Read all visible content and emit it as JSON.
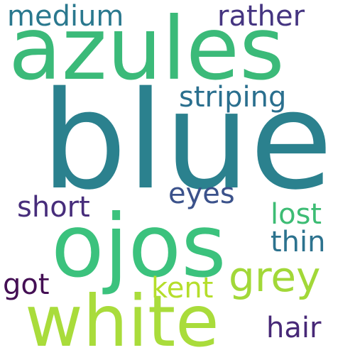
{
  "words": {
    "blue": {
      "text": "blue",
      "color": "#2b818e"
    },
    "azules": {
      "text": "azules",
      "color": "#3bba79"
    },
    "white": {
      "text": "white",
      "color": "#a9dc3b"
    },
    "ojos": {
      "text": "ojos",
      "color": "#3bc27d"
    },
    "grey": {
      "text": "grey",
      "color": "#a2d838"
    },
    "striping": {
      "text": "striping",
      "color": "#2a6f8e"
    },
    "medium": {
      "text": "medium",
      "color": "#2a788e"
    },
    "rather": {
      "text": "rather",
      "color": "#453581"
    },
    "eyes": {
      "text": "eyes",
      "color": "#3b528b"
    },
    "short": {
      "text": "short",
      "color": "#472d7b"
    },
    "lost": {
      "text": "lost",
      "color": "#3dbc74"
    },
    "thin": {
      "text": "thin",
      "color": "#2c728e"
    },
    "got": {
      "text": "got",
      "color": "#440f54"
    },
    "kent": {
      "text": "kent",
      "color": "#b5de2b"
    },
    "hair": {
      "text": "hair",
      "color": "#472877"
    }
  }
}
